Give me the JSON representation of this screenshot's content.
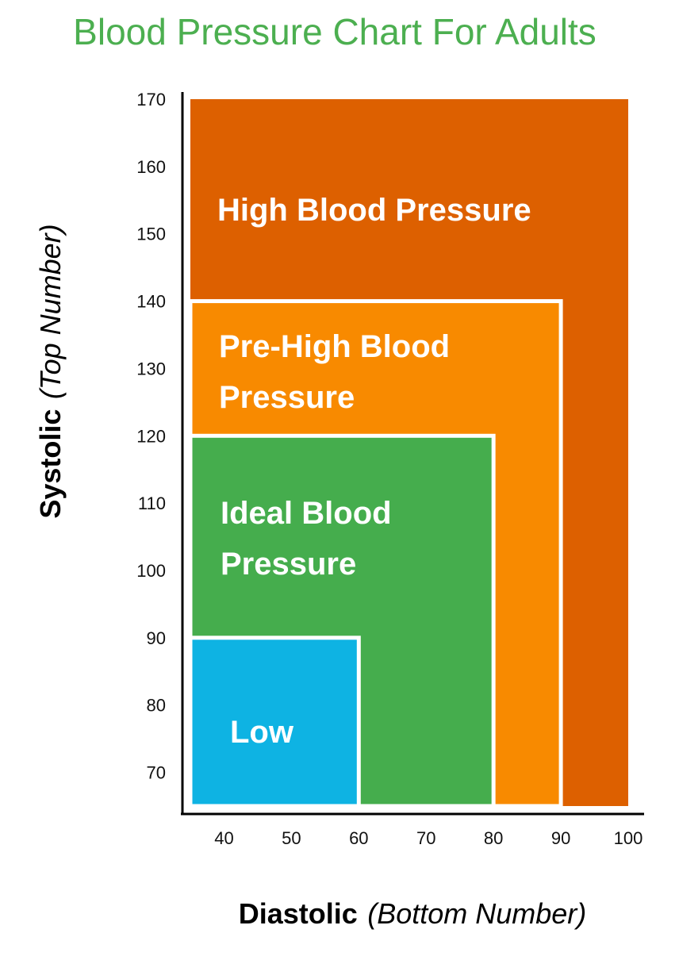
{
  "chart_data": {
    "type": "area",
    "title": "Blood Pressure Chart For Adults",
    "xlabel": {
      "main": "Diastolic",
      "note": "(Bottom Number)"
    },
    "ylabel": {
      "main": "Systolic",
      "note": "(Top Number)"
    },
    "xlim": [
      35,
      100
    ],
    "ylim": [
      65,
      170
    ],
    "x_ticks": [
      "40",
      "50",
      "60",
      "70",
      "80",
      "90",
      "100"
    ],
    "y_ticks": [
      "70",
      "80",
      "90",
      "100",
      "110",
      "120",
      "130",
      "140",
      "150",
      "160",
      "170"
    ],
    "grid": false,
    "zones": [
      {
        "name": "High Blood Pressure",
        "label_lines": [
          "High Blood Pressure"
        ],
        "diastolic_max": 100,
        "systolic_max": 170,
        "color": "#dd6000"
      },
      {
        "name": "Pre-High Blood Pressure",
        "label_lines": [
          "Pre-High Blood",
          "Pressure"
        ],
        "diastolic_max": 90,
        "systolic_max": 140,
        "color": "#f88a00"
      },
      {
        "name": "Ideal Blood Pressure",
        "label_lines": [
          "Ideal Blood",
          "Pressure"
        ],
        "diastolic_max": 80,
        "systolic_max": 120,
        "color": "#45ad4d"
      },
      {
        "name": "Low",
        "label_lines": [
          "Low"
        ],
        "diastolic_max": 60,
        "systolic_max": 90,
        "color": "#0eb3e3"
      }
    ]
  }
}
